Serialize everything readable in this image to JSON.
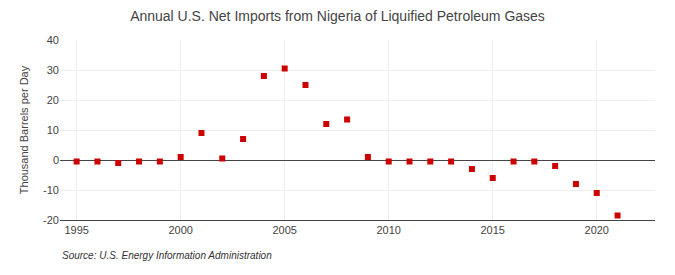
{
  "chart_data": {
    "type": "scatter",
    "title": "Annual U.S. Net Imports from Nigeria of Liquified Petroleum Gases",
    "ylabel": "Thousand Barrels per Day",
    "annotations": [
      "Source: U.S. Energy Information Administration"
    ],
    "x": [
      1995,
      1996,
      1997,
      1998,
      1999,
      2000,
      2001,
      2002,
      2003,
      2004,
      2005,
      2006,
      2007,
      2008,
      2009,
      2010,
      2011,
      2012,
      2013,
      2014,
      2015,
      2016,
      2017,
      2018,
      2019,
      2020,
      2021
    ],
    "values": [
      -0.5,
      -0.5,
      -1.0,
      -0.5,
      -0.5,
      1.0,
      9.0,
      0.5,
      7.0,
      28.0,
      30.5,
      25.0,
      12.0,
      13.5,
      1.0,
      -0.5,
      -0.5,
      -0.5,
      -0.5,
      -3.0,
      -6.0,
      -0.5,
      -0.5,
      -2.0,
      -8.0,
      -11.0,
      -18.5
    ],
    "color": "#cc0000",
    "marker": "square",
    "xlim": [
      1994.2,
      2022.8
    ],
    "xticks": [
      1995,
      2000,
      2005,
      2010,
      2015,
      2020
    ],
    "ylim": [
      -20,
      40
    ],
    "yticks": [
      -20,
      -10,
      0,
      10,
      20,
      30,
      40
    ],
    "grid": true
  }
}
